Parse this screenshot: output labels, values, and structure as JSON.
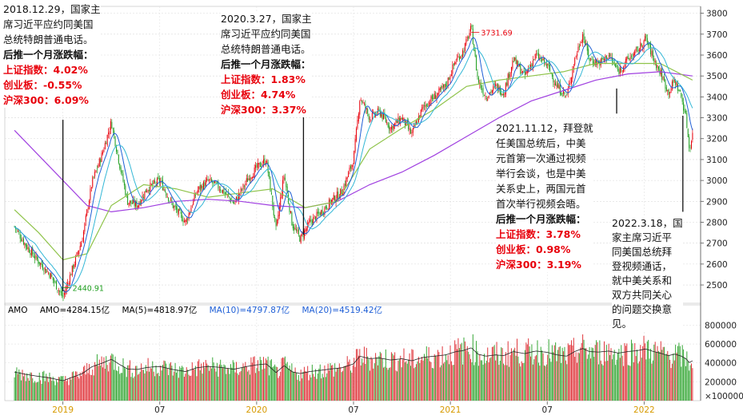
{
  "chart_data": {
    "type": "candlestick",
    "y_ticks": [
      2500,
      2600,
      2700,
      2800,
      2900,
      3000,
      3100,
      3200,
      3300,
      3400,
      3500,
      3600,
      3700,
      3800
    ],
    "ylim": [
      2420,
      3810
    ],
    "vol_ticks": [
      "800000",
      "600000",
      "400000",
      "200000",
      "×100000"
    ],
    "vol_tick_values": [
      800000,
      600000,
      400000,
      200000
    ],
    "vol_ylim": [
      0,
      880000
    ],
    "x_ticks": [
      {
        "label": "2019",
        "month_index": 0,
        "highlight": true
      },
      {
        "label": "07",
        "month_index": 6,
        "highlight": false
      },
      {
        "label": "2020",
        "month_index": 12,
        "highlight": true
      },
      {
        "label": "07",
        "month_index": 18,
        "highlight": false
      },
      {
        "label": "2021",
        "month_index": 24,
        "highlight": true
      },
      {
        "label": "07",
        "month_index": 30,
        "highlight": false
      },
      {
        "label": "2022",
        "month_index": 36,
        "highlight": true
      }
    ],
    "series_close": [
      {
        "t": -3.0,
        "v": 2780
      },
      {
        "t": -2.3,
        "v": 2690
      },
      {
        "t": -1.6,
        "v": 2620
      },
      {
        "t": -0.8,
        "v": 2550
      },
      {
        "t": 0.0,
        "v": 2440
      },
      {
        "t": 0.6,
        "v": 2580
      },
      {
        "t": 1.2,
        "v": 2720
      },
      {
        "t": 1.8,
        "v": 2990
      },
      {
        "t": 2.4,
        "v": 3120
      },
      {
        "t": 3.0,
        "v": 3280
      },
      {
        "t": 3.5,
        "v": 3080
      },
      {
        "t": 4.0,
        "v": 2900
      },
      {
        "t": 4.6,
        "v": 2880
      },
      {
        "t": 5.2,
        "v": 2960
      },
      {
        "t": 6.0,
        "v": 3000
      },
      {
        "t": 6.8,
        "v": 2880
      },
      {
        "t": 7.6,
        "v": 2800
      },
      {
        "t": 8.3,
        "v": 2950
      },
      {
        "t": 9.0,
        "v": 3000
      },
      {
        "t": 9.8,
        "v": 2960
      },
      {
        "t": 10.6,
        "v": 2890
      },
      {
        "t": 11.4,
        "v": 3000
      },
      {
        "t": 12.0,
        "v": 3060
      },
      {
        "t": 12.6,
        "v": 3100
      },
      {
        "t": 13.2,
        "v": 2760
      },
      {
        "t": 13.7,
        "v": 3030
      },
      {
        "t": 14.2,
        "v": 2790
      },
      {
        "t": 14.7,
        "v": 2720
      },
      {
        "t": 15.3,
        "v": 2800
      },
      {
        "t": 16.0,
        "v": 2850
      },
      {
        "t": 16.6,
        "v": 2900
      },
      {
        "t": 17.3,
        "v": 2950
      },
      {
        "t": 18.0,
        "v": 3100
      },
      {
        "t": 18.4,
        "v": 3400
      },
      {
        "t": 19.0,
        "v": 3300
      },
      {
        "t": 19.6,
        "v": 3330
      },
      {
        "t": 20.3,
        "v": 3250
      },
      {
        "t": 21.0,
        "v": 3300
      },
      {
        "t": 21.6,
        "v": 3220
      },
      {
        "t": 22.3,
        "v": 3350
      },
      {
        "t": 23.0,
        "v": 3400
      },
      {
        "t": 23.7,
        "v": 3450
      },
      {
        "t": 24.3,
        "v": 3570
      },
      {
        "t": 24.8,
        "v": 3620
      },
      {
        "t": 25.3,
        "v": 3731
      },
      {
        "t": 25.7,
        "v": 3480
      },
      {
        "t": 26.2,
        "v": 3400
      },
      {
        "t": 26.8,
        "v": 3450
      },
      {
        "t": 27.3,
        "v": 3420
      },
      {
        "t": 27.9,
        "v": 3580
      },
      {
        "t": 28.6,
        "v": 3500
      },
      {
        "t": 29.3,
        "v": 3600
      },
      {
        "t": 30.0,
        "v": 3550
      },
      {
        "t": 30.6,
        "v": 3450
      },
      {
        "t": 31.2,
        "v": 3400
      },
      {
        "t": 31.7,
        "v": 3580
      },
      {
        "t": 32.2,
        "v": 3700
      },
      {
        "t": 32.6,
        "v": 3580
      },
      {
        "t": 33.2,
        "v": 3560
      },
      {
        "t": 33.8,
        "v": 3600
      },
      {
        "t": 34.4,
        "v": 3520
      },
      {
        "t": 35.0,
        "v": 3580
      },
      {
        "t": 35.6,
        "v": 3620
      },
      {
        "t": 36.1,
        "v": 3680
      },
      {
        "t": 36.6,
        "v": 3580
      },
      {
        "t": 37.1,
        "v": 3500
      },
      {
        "t": 37.5,
        "v": 3420
      },
      {
        "t": 37.9,
        "v": 3480
      },
      {
        "t": 38.3,
        "v": 3400
      },
      {
        "t": 38.6,
        "v": 3300
      },
      {
        "t": 38.8,
        "v": 3150
      },
      {
        "t": 39.0,
        "v": 3220
      }
    ],
    "series_ma_slow": [
      {
        "t": -3.0,
        "v": 3240
      },
      {
        "t": -1.5,
        "v": 3120
      },
      {
        "t": 0.0,
        "v": 3000
      },
      {
        "t": 1.5,
        "v": 2880
      },
      {
        "t": 3.0,
        "v": 2850
      },
      {
        "t": 5.0,
        "v": 2870
      },
      {
        "t": 7.0,
        "v": 2900
      },
      {
        "t": 9.0,
        "v": 2910
      },
      {
        "t": 11.0,
        "v": 2900
      },
      {
        "t": 13.0,
        "v": 2880
      },
      {
        "t": 15.0,
        "v": 2870
      },
      {
        "t": 17.0,
        "v": 2900
      },
      {
        "t": 19.0,
        "v": 2980
      },
      {
        "t": 21.0,
        "v": 3040
      },
      {
        "t": 23.0,
        "v": 3120
      },
      {
        "t": 25.0,
        "v": 3210
      },
      {
        "t": 27.0,
        "v": 3300
      },
      {
        "t": 29.0,
        "v": 3380
      },
      {
        "t": 31.0,
        "v": 3430
      },
      {
        "t": 33.0,
        "v": 3480
      },
      {
        "t": 35.0,
        "v": 3510
      },
      {
        "t": 37.0,
        "v": 3520
      },
      {
        "t": 39.0,
        "v": 3500
      }
    ],
    "series_ma_mid": [
      {
        "t": -3.0,
        "v": 2860
      },
      {
        "t": -1.5,
        "v": 2750
      },
      {
        "t": 0.0,
        "v": 2620
      },
      {
        "t": 1.5,
        "v": 2650
      },
      {
        "t": 3.0,
        "v": 2880
      },
      {
        "t": 5.0,
        "v": 2980
      },
      {
        "t": 7.0,
        "v": 2960
      },
      {
        "t": 9.0,
        "v": 2920
      },
      {
        "t": 11.0,
        "v": 2940
      },
      {
        "t": 13.0,
        "v": 2960
      },
      {
        "t": 15.0,
        "v": 2870
      },
      {
        "t": 17.0,
        "v": 2900
      },
      {
        "t": 19.0,
        "v": 3150
      },
      {
        "t": 21.0,
        "v": 3250
      },
      {
        "t": 23.0,
        "v": 3340
      },
      {
        "t": 25.0,
        "v": 3450
      },
      {
        "t": 27.0,
        "v": 3480
      },
      {
        "t": 29.0,
        "v": 3500
      },
      {
        "t": 31.0,
        "v": 3520
      },
      {
        "t": 33.0,
        "v": 3560
      },
      {
        "t": 35.0,
        "v": 3560
      },
      {
        "t": 37.0,
        "v": 3560
      },
      {
        "t": 39.0,
        "v": 3480
      }
    ],
    "annotations": [
      {
        "label": "3731.69",
        "t": 25.3,
        "v": 3731.69
      },
      {
        "label": "2440.91",
        "t": 0.0,
        "v": 2440.91
      }
    ],
    "event_lines": [
      {
        "t": 0.0,
        "v_top": 3290,
        "v_bottom": 2470
      },
      {
        "t": 14.9,
        "v_top": 3340,
        "v_bottom": 2740
      },
      {
        "t": 34.3,
        "v_top": 3440,
        "v_bottom": 3320
      },
      {
        "t": 38.4,
        "v_top": 3310,
        "v_bottom": 2850
      }
    ]
  },
  "amo_legend": {
    "title": "AMO",
    "amo": "AMO=4284.15亿",
    "ma5": "MA(5)=4818.97亿",
    "ma10": "MA(10)=4797.87亿",
    "ma20": "MA(20)=4519.42亿"
  },
  "colors": {
    "up": "#e8000b",
    "down": "#1e9e1e",
    "ma_slow": "#a040e0",
    "ma_mid": "#8fc34a",
    "ma_fast": "#1f5fd6",
    "ma_fast2": "#33b7d6",
    "annotation_red": "#e8000b",
    "annotation_green": "#1e9e1e"
  },
  "notes": {
    "note1": {
      "lines": [
        "2018.12.29，国家主",
        "席习近平应约同美国",
        "总统特朗普通电话。"
      ],
      "bold": "后推一个月涨跌幅：",
      "stats": [
        "上证指数：4.02%",
        "创业板：-0.55%",
        "沪深300：6.09%"
      ]
    },
    "note2": {
      "lines": [
        "2020.3.27，国家主",
        "席习近平应约同美国",
        "总统特朗普通电话。"
      ],
      "bold": "后推一个月涨跌幅：",
      "stats": [
        "上证指数：1.83%",
        "创业板：4.74%",
        "沪深300：3.37%"
      ]
    },
    "note3": {
      "lines": [
        "2021.11.12，拜登就",
        "任美国总统后，中美",
        "元首第一次通过视频",
        "举行会谈，也是中美",
        "关系史上，两国元首",
        "首次举行视频会晤。"
      ],
      "bold": "后推一个月涨跌幅：",
      "stats": [
        "上证指数：3.78%",
        "创业板：0.98%",
        "沪深300：3.19%"
      ]
    },
    "note4": {
      "lines": [
        "2022.3.18，国",
        "家主席习近平",
        "同美国总统拜",
        "登视频通话，",
        "就中美关系和",
        "双方共同关心",
        "的问题交换意",
        "见。"
      ]
    }
  }
}
